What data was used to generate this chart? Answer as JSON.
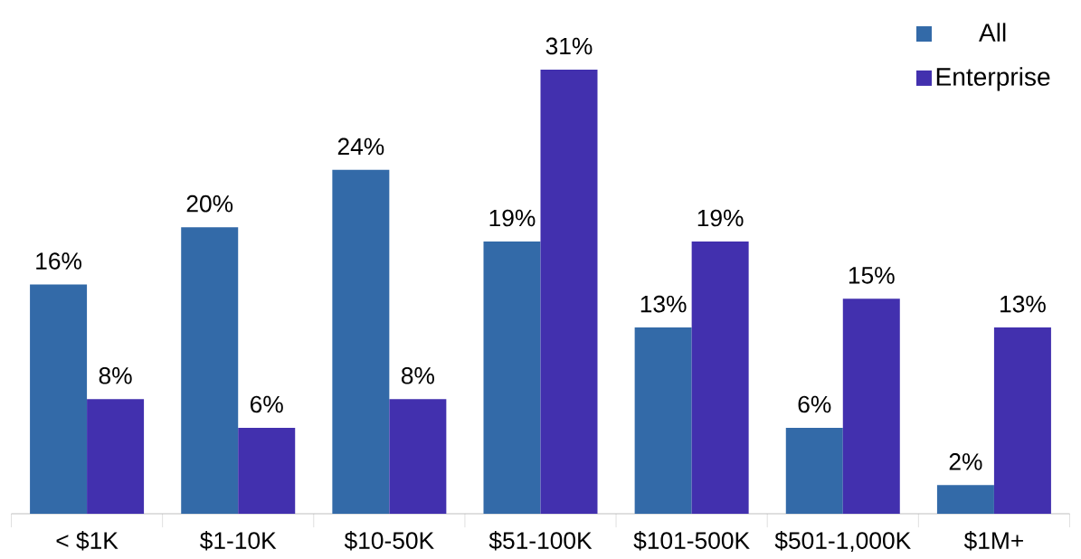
{
  "chart_data": {
    "type": "bar",
    "categories": [
      "< $1K",
      "$1-10K",
      "$10-50K",
      "$51-100K",
      "$101-500K",
      "$501-1,000K",
      "$1M+"
    ],
    "series": [
      {
        "name": "All",
        "color": "#336aa8",
        "values": [
          16,
          20,
          24,
          19,
          13,
          6,
          2
        ],
        "value_labels": [
          "16%",
          "20%",
          "24%",
          "19%",
          "13%",
          "6%",
          "2%"
        ]
      },
      {
        "name": "Enterprise",
        "color": "#4230ae",
        "values": [
          8,
          6,
          8,
          31,
          19,
          15,
          13
        ],
        "value_labels": [
          "8%",
          "6%",
          "8%",
          "31%",
          "19%",
          "15%",
          "13%"
        ]
      }
    ],
    "legend": "top right",
    "grid": false
  }
}
